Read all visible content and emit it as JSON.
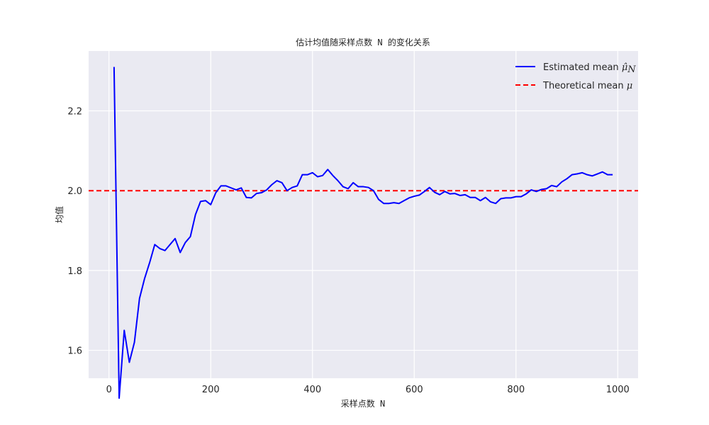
{
  "chart_data": {
    "type": "line",
    "title": "估计均值随采样点数 N 的变化关系",
    "xlabel": "采样点数 N",
    "ylabel": "均值",
    "xlim": [
      -40,
      1040
    ],
    "ylim": [
      1.53,
      2.35
    ],
    "xticks": [
      0,
      200,
      400,
      600,
      800,
      1000
    ],
    "yticks": [
      1.6,
      1.8,
      2.0,
      2.2
    ],
    "xtick_labels": [
      "0",
      "200",
      "400",
      "600",
      "800",
      "1000"
    ],
    "ytick_labels": [
      "1.6",
      "1.8",
      "2.0",
      "2.2"
    ],
    "grid": true,
    "legend_position": "top-right",
    "series": [
      {
        "name": "Estimated mean",
        "name_math": "μ̂",
        "name_math_sub": "N",
        "color": "#0000ff",
        "style": "solid",
        "x": [
          10,
          20,
          30,
          40,
          50,
          60,
          70,
          80,
          90,
          100,
          110,
          120,
          130,
          140,
          150,
          160,
          170,
          180,
          190,
          200,
          210,
          220,
          230,
          240,
          250,
          260,
          270,
          280,
          290,
          300,
          310,
          320,
          330,
          340,
          350,
          360,
          370,
          380,
          390,
          400,
          410,
          420,
          430,
          440,
          450,
          460,
          470,
          480,
          490,
          500,
          510,
          520,
          530,
          540,
          550,
          560,
          570,
          580,
          590,
          600,
          610,
          620,
          630,
          640,
          650,
          660,
          670,
          680,
          690,
          700,
          710,
          720,
          730,
          740,
          750,
          760,
          770,
          780,
          790,
          800,
          810,
          820,
          830,
          840,
          850,
          860,
          870,
          880,
          890,
          900,
          910,
          920,
          930,
          940,
          950,
          960,
          970,
          980,
          990
        ],
        "y": [
          2.31,
          1.48,
          1.65,
          1.57,
          1.62,
          1.73,
          1.78,
          1.82,
          1.865,
          1.855,
          1.85,
          1.865,
          1.88,
          1.845,
          1.87,
          1.885,
          1.94,
          1.973,
          1.975,
          1.965,
          1.995,
          2.012,
          2.012,
          2.007,
          2.002,
          2.007,
          1.983,
          1.982,
          1.993,
          1.995,
          2.002,
          2.015,
          2.025,
          2.02,
          2.0,
          2.008,
          2.012,
          2.04,
          2.04,
          2.045,
          2.035,
          2.038,
          2.053,
          2.038,
          2.025,
          2.01,
          2.005,
          2.02,
          2.01,
          2.01,
          2.008,
          2.0,
          1.978,
          1.968,
          1.968,
          1.97,
          1.968,
          1.975,
          1.982,
          1.986,
          1.989,
          1.998,
          2.008,
          1.996,
          1.99,
          1.998,
          1.992,
          1.993,
          1.988,
          1.99,
          1.983,
          1.983,
          1.975,
          1.983,
          1.972,
          1.968,
          1.98,
          1.982,
          1.982,
          1.985,
          1.985,
          1.992,
          2.002,
          1.998,
          2.003,
          2.005,
          2.013,
          2.01,
          2.022,
          2.03,
          2.04,
          2.042,
          2.045,
          2.04,
          2.037,
          2.042,
          2.047,
          2.04,
          2.04
        ]
      },
      {
        "name": "Theoretical mean",
        "name_math": "μ",
        "color": "#ff0000",
        "style": "dashed",
        "y_constant": 2.0
      }
    ]
  }
}
